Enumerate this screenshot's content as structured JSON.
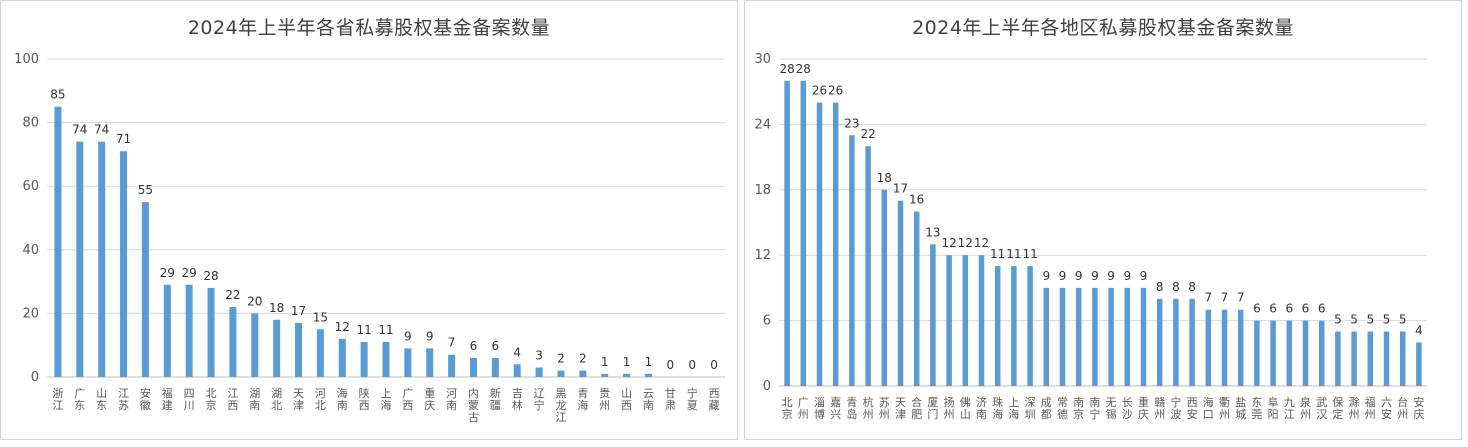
{
  "chart_data": [
    {
      "type": "bar",
      "title": "2024年上半年各省私募股权基金备案数量",
      "categories": [
        "浙江",
        "广东",
        "山东",
        "江苏",
        "安徽",
        "福建",
        "四川",
        "北京",
        "江西",
        "湖南",
        "湖北",
        "天津",
        "河北",
        "海南",
        "陕西",
        "上海",
        "广西",
        "重庆",
        "河南",
        "内蒙古",
        "新疆",
        "吉林",
        "辽宁",
        "黑龙江",
        "青海",
        "贵州",
        "山西",
        "云南",
        "甘肃",
        "宁夏",
        "西藏"
      ],
      "values": [
        85,
        74,
        74,
        71,
        55,
        29,
        29,
        28,
        22,
        20,
        18,
        17,
        15,
        12,
        11,
        11,
        9,
        9,
        7,
        6,
        6,
        4,
        3,
        2,
        2,
        1,
        1,
        1,
        0,
        0,
        0
      ],
      "ylim": [
        0,
        100
      ],
      "yticks": [
        0,
        20,
        40,
        60,
        80,
        100
      ],
      "grid": true,
      "legend": "none",
      "bar_color": "#5b9bd5"
    },
    {
      "type": "bar",
      "title": "2024年上半年各地区私募股权基金备案数量",
      "categories": [
        "北京",
        "广州",
        "淄博",
        "嘉兴",
        "青岛",
        "杭州",
        "苏州",
        "天津",
        "合肥",
        "厦门",
        "扬州",
        "佛山",
        "济南",
        "珠海",
        "上海",
        "深圳",
        "成都",
        "常德",
        "南京",
        "南宁",
        "无锡",
        "长沙",
        "重庆",
        "赣州",
        "宁波",
        "西安",
        "海口",
        "衢州",
        "盐城",
        "东莞",
        "阜阳",
        "九江",
        "泉州",
        "武汉",
        "保定",
        "滁州",
        "福州",
        "六安",
        "台州",
        "安庆"
      ],
      "values": [
        28,
        28,
        26,
        26,
        23,
        22,
        18,
        17,
        16,
        13,
        12,
        12,
        12,
        11,
        11,
        11,
        9,
        9,
        9,
        9,
        9,
        9,
        9,
        8,
        8,
        8,
        7,
        7,
        7,
        6,
        6,
        6,
        6,
        6,
        5,
        5,
        5,
        5,
        5,
        4
      ],
      "ylim": [
        0,
        30
      ],
      "yticks": [
        0,
        6,
        12,
        18,
        24,
        30
      ],
      "grid": true,
      "legend": "none",
      "bar_color": "#5b9bd5"
    }
  ]
}
